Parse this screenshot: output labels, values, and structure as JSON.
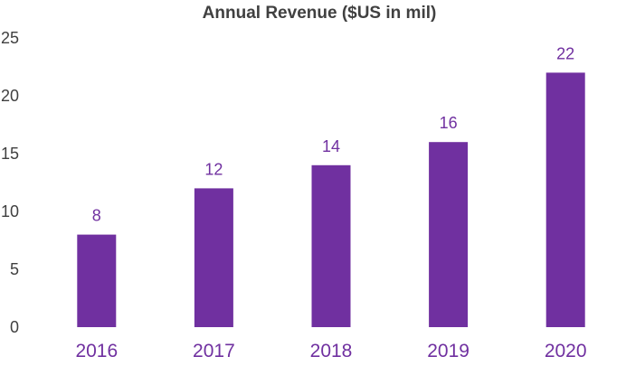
{
  "chart_data": {
    "type": "bar",
    "title": "Annual Revenue ($US in mil)",
    "xlabel": "",
    "ylabel": "",
    "categories": [
      "2016",
      "2017",
      "2018",
      "2019",
      "2020"
    ],
    "values": [
      8,
      12,
      14,
      16,
      22
    ],
    "ylim": [
      0,
      25
    ],
    "yticks": [
      "0",
      "5",
      "10",
      "15",
      "20",
      "25"
    ],
    "data_labels": [
      "8",
      "12",
      "14",
      "16",
      "22"
    ],
    "grid": false,
    "legend": "none",
    "colors": {
      "bar": "#7030A0",
      "data_label": "#7030A0",
      "x_tick": "#7030A0",
      "y_tick": "#404040",
      "title": "#404040"
    }
  }
}
